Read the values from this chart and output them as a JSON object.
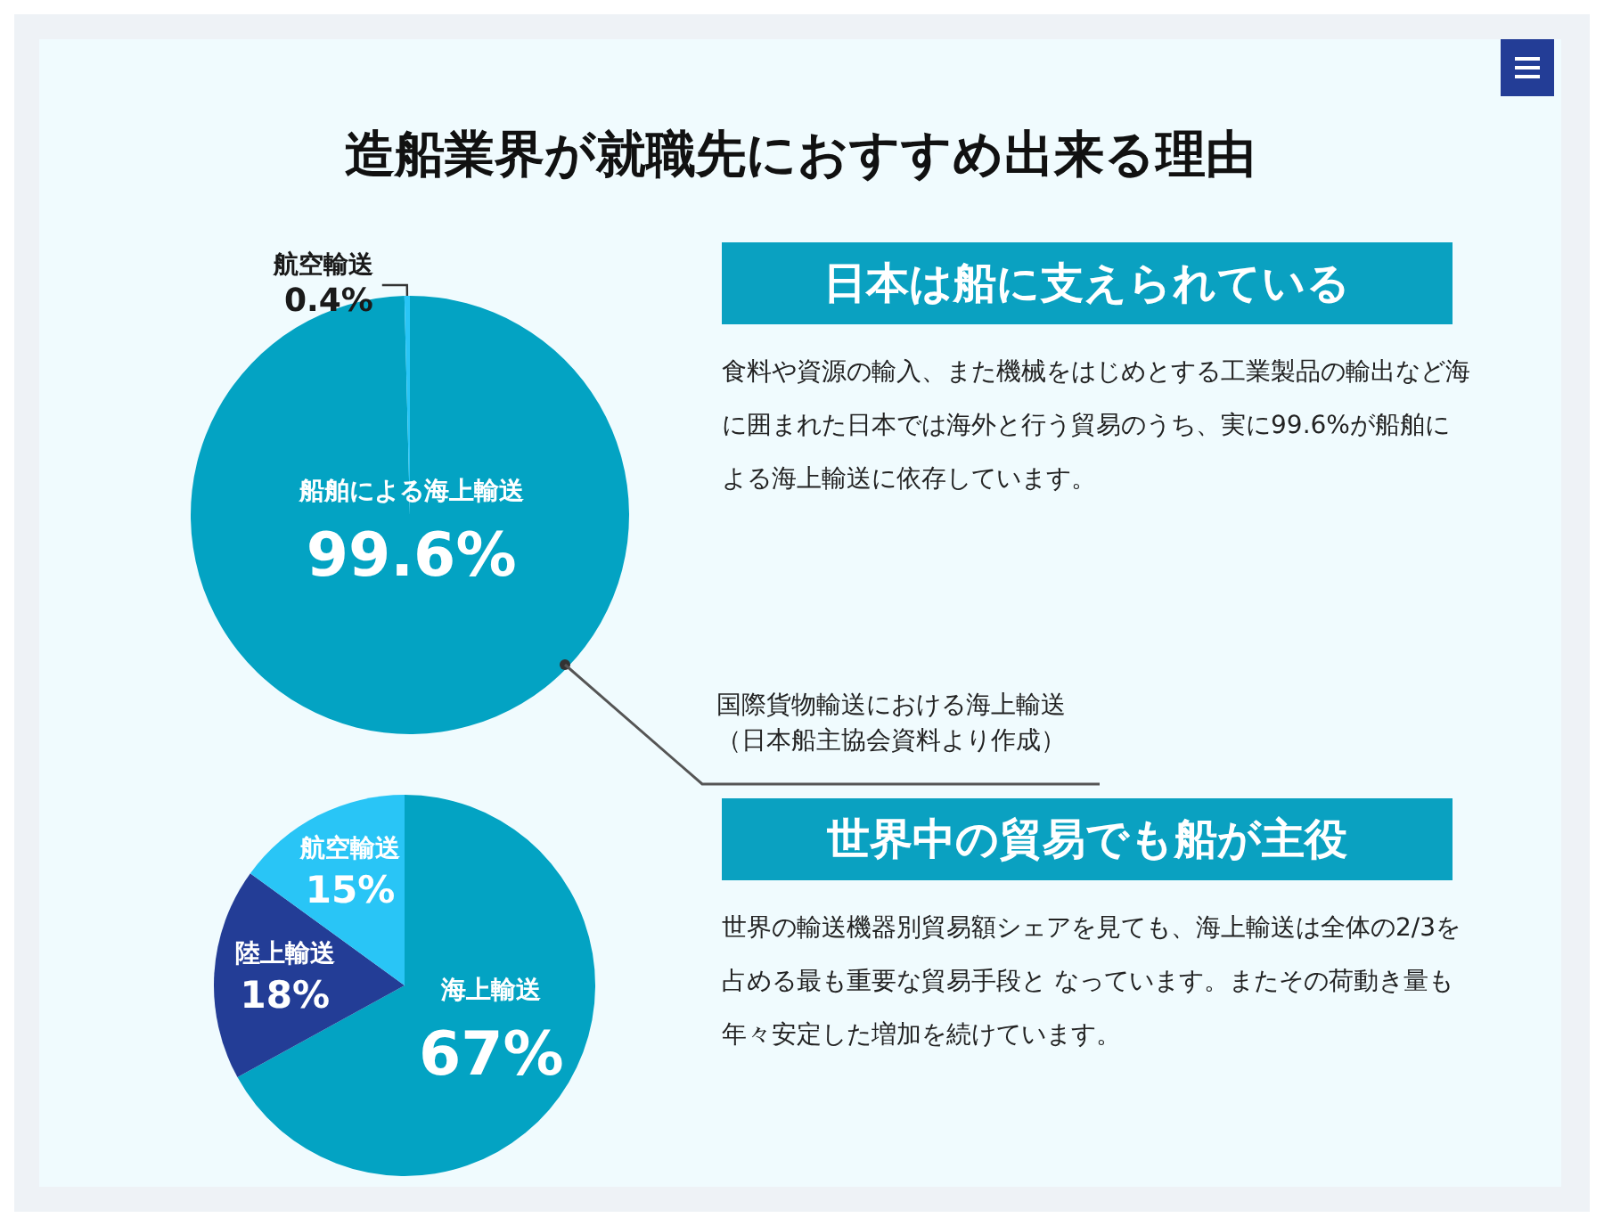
{
  "chart_data": [
    {
      "type": "pie",
      "title": "造船業界が就職先におすすめ出来る理由",
      "subtitle": "日本は船に支えられている",
      "categories": [
        "船舶による海上輸送",
        "航空輸送"
      ],
      "values": [
        99.6,
        0.4
      ],
      "colors": [
        "#03a3c3",
        "#29c5f6"
      ],
      "value_labels": [
        "99.6%",
        "0.4%"
      ],
      "annotations": [
        "食料や資源の輸入、また機械をはじめとする工業製品の輸出など海に囲まれた日本では海外と行う貿易のうち、実に99.6%が船舶による海上輸送に依存しています。",
        "国際貨物輸送における海上輸送",
        "（日本船主協会資料より作成）"
      ]
    },
    {
      "type": "pie",
      "subtitle": "世界中の貿易でも船が主役",
      "categories": [
        "海上輸送",
        "陸上輸送",
        "航空輸送"
      ],
      "values": [
        67,
        18,
        15
      ],
      "colors": [
        "#03a3c3",
        "#233d96",
        "#29c5f6"
      ],
      "value_labels": [
        "67%",
        "18%",
        "15%"
      ],
      "annotations": [
        "世界の輸送機器別貿易額シェアを見ても、海上輸送は全体の2/3を占める最も重要な貿易手段と なっています。またその荷動き量も年々安定した増加を続けています。"
      ]
    }
  ]
}
